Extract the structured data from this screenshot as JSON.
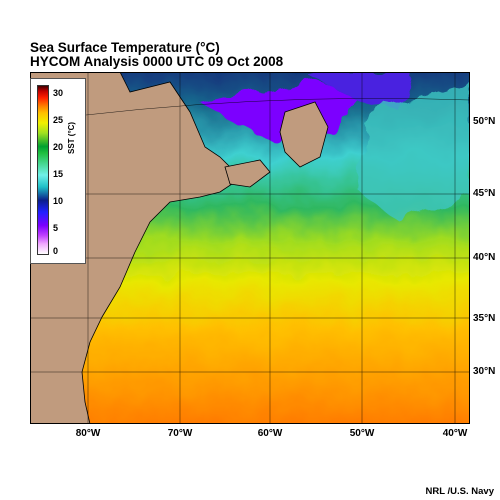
{
  "title": "Sea Surface Temperature (°C)",
  "subtitle": "HYCOM Analysis 0000 UTC 09 Oct 2008",
  "credit": "NRL /U.S. Navy",
  "lat_labels": [
    "50°N",
    "45°N",
    "40°N",
    "35°N",
    "30°N"
  ],
  "lon_labels": [
    "80°W",
    "70°W",
    "60°W",
    "50°W",
    "40°W"
  ],
  "legend": {
    "label": "SST (°C)",
    "ticks": [
      "30",
      "25",
      "20",
      "15",
      "10",
      "5",
      "0"
    ]
  },
  "colors": {
    "land": "#c09b7e",
    "cold": "#7b00ff",
    "cool": "#20c0c8",
    "mid": "#a0e020",
    "warm": "#ff8000"
  }
}
